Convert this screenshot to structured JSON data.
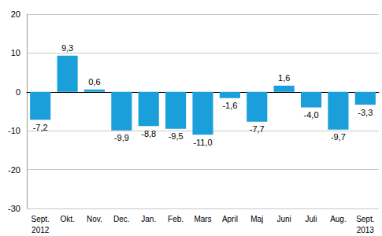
{
  "chart_data": {
    "type": "bar",
    "categories": [
      "Sept.\n2012",
      "Okt.",
      "Nov.",
      "Dec.",
      "Jan.",
      "Feb.",
      "Mars",
      "April",
      "Maj",
      "Juni",
      "Juli",
      "Aug.",
      "Sept.\n2013"
    ],
    "values": [
      -7.2,
      9.3,
      0.6,
      -9.9,
      -8.8,
      -9.5,
      -11.0,
      -1.6,
      -7.7,
      1.6,
      -4.0,
      -9.7,
      -3.3
    ],
    "value_labels": [
      "-7,2",
      "9,3",
      "0,6",
      "-9,9",
      "-8,8",
      "-9,5",
      "-11,0",
      "-1,6",
      "-7,7",
      "1,6",
      "-4,0",
      "-9,7",
      "-3,3"
    ],
    "data_labels": true,
    "color": "#1a9fdb",
    "ylim": [
      -30,
      20
    ],
    "yticks": [
      -30,
      -20,
      -10,
      0,
      10,
      20
    ],
    "grid": true
  }
}
